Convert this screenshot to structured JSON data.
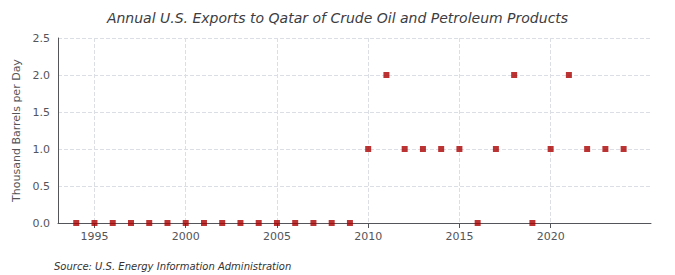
{
  "chart_data": {
    "type": "scatter",
    "title": "Annual U.S. Exports to Qatar of Crude Oil and Petroleum Products",
    "ylabel": "Thousand Barrels per Day",
    "annotations": [
      "Source: U.S. Energy Information Administration"
    ],
    "x": [
      1994,
      1995,
      1996,
      1997,
      1998,
      1999,
      2000,
      2001,
      2002,
      2003,
      2004,
      2005,
      2006,
      2007,
      2008,
      2009,
      2010,
      2011,
      2012,
      2013,
      2014,
      2015,
      2016,
      2017,
      2018,
      2019,
      2020,
      2021,
      2022,
      2023,
      2024
    ],
    "values": [
      0.0,
      0.0,
      0.0,
      0.0,
      0.0,
      0.0,
      0.0,
      0.0,
      0.0,
      0.0,
      0.0,
      0.0,
      0.0,
      0.0,
      0.0,
      0.0,
      1.0,
      2.0,
      1.0,
      1.0,
      1.0,
      1.0,
      0.0,
      1.0,
      2.0,
      0.0,
      1.0,
      2.0,
      1.0,
      1.0,
      1.0
    ],
    "color": "#aa0000",
    "marker": "square",
    "xlim": [
      1993.0,
      2025.5
    ],
    "ylim": [
      0,
      2.5
    ],
    "xticks": [
      1995,
      2000,
      2005,
      2010,
      2015,
      2020
    ],
    "yticks": [
      {
        "value": 0.0,
        "label": "0.0"
      },
      0.5,
      {
        "value": 1.0,
        "label": "1.0"
      },
      1.5,
      {
        "value": 2.0,
        "label": "2.0"
      },
      2.5
    ],
    "grid": true
  }
}
